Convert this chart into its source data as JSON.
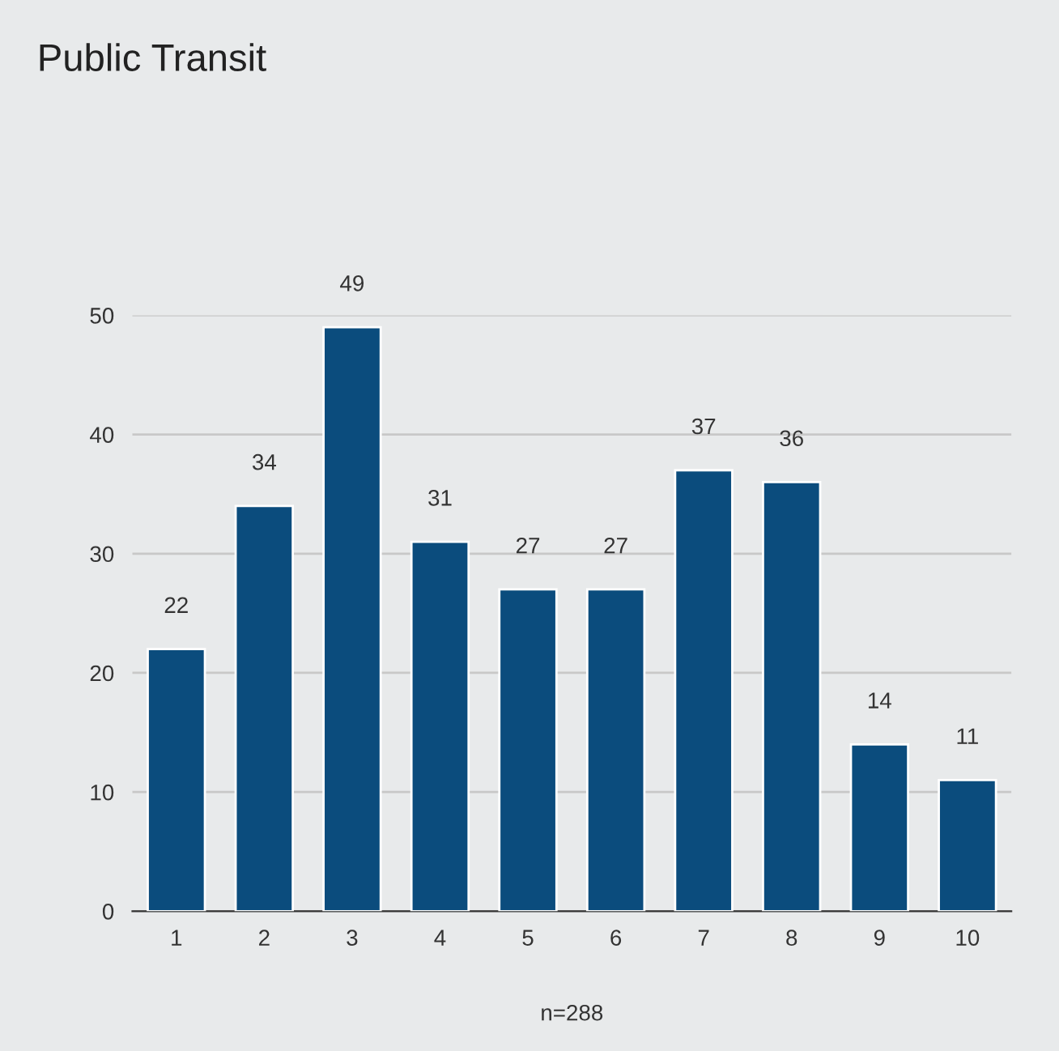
{
  "chart_data": {
    "type": "bar",
    "title": "Public Transit",
    "xlabel": "n=288",
    "categories": [
      "1",
      "2",
      "3",
      "4",
      "5",
      "6",
      "7",
      "8",
      "9",
      "10"
    ],
    "values": [
      22,
      34,
      49,
      31,
      27,
      27,
      37,
      36,
      14,
      11
    ],
    "color": "#0b4c7d",
    "ylim": [
      0,
      50
    ],
    "yticks": [
      0,
      10,
      20,
      30,
      40,
      50
    ],
    "grid": "y",
    "data_labels": true
  }
}
